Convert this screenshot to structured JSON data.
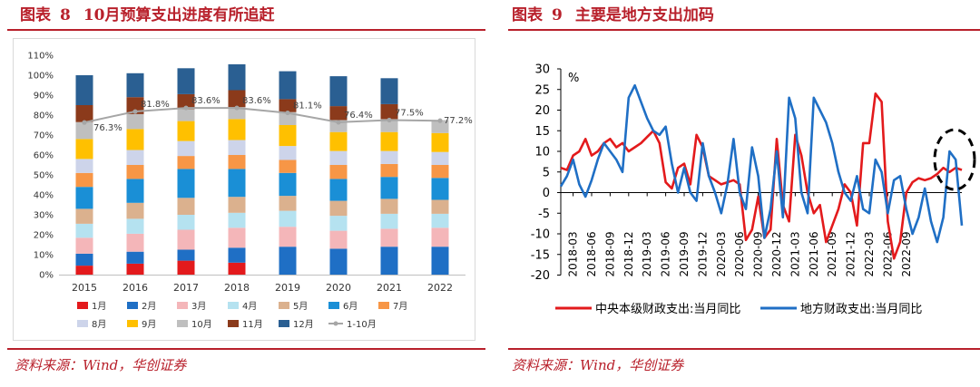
{
  "left_panel": {
    "fig_label": "图表",
    "fig_num": "8",
    "fig_title": "10月预算支出进度有所追赶",
    "source": "资料来源：Wind，华创证券"
  },
  "right_panel": {
    "fig_label": "图表",
    "fig_num": "9",
    "fig_title": "主要是地方支出加码",
    "source": "资料来源：Wind，华创证券"
  },
  "chart_data": [
    {
      "type": "bar",
      "stacked": true,
      "title": "10月预算支出进度有所追赶",
      "categories": [
        "2015",
        "2016",
        "2017",
        "2018",
        "2019",
        "2020",
        "2021",
        "2022"
      ],
      "ylim": [
        0,
        110
      ],
      "ytick_values": [
        0,
        10,
        20,
        30,
        40,
        50,
        60,
        70,
        80,
        90,
        100,
        110
      ],
      "ytick_labels": [
        "0%",
        "10%",
        "20%",
        "30%",
        "40%",
        "50%",
        "60%",
        "70%",
        "80%",
        "90%",
        "100%",
        "110%"
      ],
      "series": [
        {
          "name": "1月",
          "color": "#e31a1c",
          "values": [
            4.5,
            5.5,
            7.0,
            6.0,
            0,
            0,
            0,
            0
          ]
        },
        {
          "name": "2月",
          "color": "#1f6fc5",
          "values": [
            6.0,
            6.0,
            5.5,
            7.5,
            14.0,
            13.0,
            14.0,
            14.0
          ]
        },
        {
          "name": "3月",
          "color": "#f4b6b9",
          "values": [
            8.0,
            9.0,
            10.0,
            10.0,
            10.0,
            9.0,
            9.0,
            9.5
          ]
        },
        {
          "name": "4月",
          "color": "#b5e2f0",
          "values": [
            7.0,
            7.5,
            7.5,
            7.5,
            8.0,
            7.5,
            7.5,
            7.0
          ]
        },
        {
          "name": "5月",
          "color": "#dbb18e",
          "values": [
            7.5,
            8.0,
            8.5,
            8.0,
            7.5,
            7.5,
            7.5,
            7.0
          ]
        },
        {
          "name": "6月",
          "color": "#1a8fd6",
          "values": [
            11.0,
            12.0,
            14.5,
            14.0,
            11.5,
            11.0,
            11.0,
            11.0
          ]
        },
        {
          "name": "7月",
          "color": "#f79646",
          "values": [
            7.0,
            7.0,
            6.5,
            7.0,
            6.5,
            7.0,
            6.5,
            6.5
          ]
        },
        {
          "name": "8月",
          "color": "#cdd4ea",
          "values": [
            7.0,
            7.5,
            7.5,
            7.5,
            7.0,
            7.0,
            6.5,
            6.5
          ]
        },
        {
          "name": "9月",
          "color": "#ffc000",
          "values": [
            10.0,
            10.5,
            10.0,
            10.5,
            10.5,
            9.5,
            9.5,
            9.5
          ]
        },
        {
          "name": "10月",
          "color": "#bfbfbf",
          "values": [
            8.5,
            7.5,
            6.0,
            6.0,
            6.5,
            6.0,
            6.5,
            6.5
          ]
        },
        {
          "name": "11月",
          "color": "#8b3a1b",
          "values": [
            8.5,
            8.5,
            7.5,
            8.5,
            6.5,
            7.0,
            7.5,
            0
          ]
        },
        {
          "name": "12月",
          "color": "#2a5f92",
          "values": [
            15.0,
            12.0,
            13.0,
            13.0,
            14.0,
            15.0,
            13.0,
            0
          ]
        }
      ],
      "line_series": {
        "name": "1-10月",
        "color": "#a6a6a6",
        "values": [
          76.3,
          81.8,
          83.6,
          83.6,
          81.1,
          76.4,
          77.5,
          77.2
        ],
        "labels": [
          "76.3%",
          "81.8%",
          "83.6%",
          "83.6%",
          "81.1%",
          "76.4%",
          "77.5%",
          "77.2%"
        ]
      },
      "legend_position": "bottom"
    },
    {
      "type": "line",
      "title": "主要是地方支出加码",
      "ylabel": "%",
      "ylim": [
        -20,
        30
      ],
      "ytick_values": [
        30,
        25,
        20,
        15,
        10,
        5,
        0,
        -5,
        -10,
        -15,
        -20
      ],
      "ytick_labels": [
        "30",
        "25",
        "20",
        "15",
        "10",
        "5",
        "0",
        "-5",
        "-10",
        "-15",
        "-20"
      ],
      "x_start": "2018-01",
      "xtick_labels": [
        "2018-03",
        "2018-06",
        "2018-09",
        "2018-12",
        "2019-03",
        "2019-06",
        "2019-09",
        "2019-12",
        "2020-03",
        "2020-06",
        "2020-09",
        "2020-12",
        "2021-03",
        "2021-06",
        "2021-09",
        "2021-12",
        "2022-03",
        "2022-06",
        "2022-09"
      ],
      "series": [
        {
          "name": "中央本级财政支出:当月同比",
          "color": "#e31a1c",
          "values": [
            6,
            5.5,
            9,
            10,
            13,
            9,
            10,
            12,
            13,
            11,
            12,
            10,
            11,
            12,
            13.5,
            15,
            12,
            2.5,
            1,
            6,
            7,
            2,
            14,
            11,
            4,
            3,
            2,
            2.5,
            3,
            2,
            -11.5,
            -9,
            -1,
            -11,
            -9,
            13,
            -3,
            -7,
            14,
            9,
            0,
            -5,
            -3,
            -12,
            -8,
            -4,
            2,
            0,
            -8,
            12,
            12,
            24,
            22,
            -7,
            -16,
            -12,
            0,
            2.5,
            3.5,
            3,
            3.5,
            4.5,
            6,
            5,
            6,
            5.5
          ]
        },
        {
          "name": "地方财政支出:当月同比",
          "color": "#1f6fc5",
          "values": [
            1.5,
            4,
            8,
            2,
            -1,
            3,
            8,
            12,
            10,
            8,
            5,
            23,
            26,
            22,
            18,
            15,
            14,
            16,
            7,
            0,
            6,
            0,
            -2,
            12,
            4,
            0,
            -5,
            2,
            13,
            0,
            -4,
            11,
            4,
            -11,
            -4,
            10,
            -6,
            23,
            18,
            0,
            -5,
            23,
            20,
            17,
            12,
            5,
            0,
            -2,
            4,
            -4,
            -5,
            8,
            5,
            -5,
            3,
            4,
            -4,
            -10,
            -6,
            1,
            -7,
            -12,
            -6,
            10,
            8,
            -8
          ]
        }
      ],
      "highlight": "dashed ellipse around latest values (2022-09)",
      "legend_position": "bottom"
    }
  ]
}
